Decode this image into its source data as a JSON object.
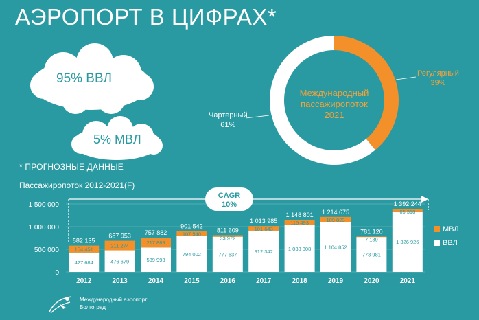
{
  "header": {
    "title": "АЭРОПОРТ В ЦИФРАХ*"
  },
  "clouds": [
    {
      "label": "95% ВВЛ"
    },
    {
      "label": "5% МВЛ"
    }
  ],
  "note": "* ПРОГНОЗНЫЕ ДАННЫЕ",
  "donut": {
    "center_line1": "Международный",
    "center_line2": "пассажиропоток",
    "center_line3": "2021",
    "regular_label": "Регулярный",
    "regular_pct": "39%",
    "charter_label": "Чартерный",
    "charter_pct": "61%"
  },
  "colors": {
    "background": "#2a9aa2",
    "orange": "#f3902a",
    "white": "#ffffff",
    "center_text": "#f3a23c"
  },
  "chart_title": "Пассажиропоток 2012-2021(F)",
  "cagr": {
    "label": "CAGR",
    "value": "10%"
  },
  "logo": {
    "line1": "Международный аэропорт",
    "line2": "Волгоград"
  },
  "chart_data": [
    {
      "type": "pie",
      "title": "Международный пассажиропоток 2021",
      "categories": [
        "Регулярный",
        "Чартерный"
      ],
      "values": [
        39,
        61
      ]
    },
    {
      "type": "bar",
      "stacked": true,
      "title": "Пассажиропоток 2012-2021(F)",
      "categories": [
        "2012",
        "2013",
        "2014",
        "2015",
        "2016",
        "2017",
        "2018",
        "2019",
        "2020",
        "2021"
      ],
      "series": [
        {
          "name": "ВВЛ",
          "values": [
            427684,
            476679,
            539993,
            794002,
            777637,
            912342,
            1033308,
            1104852,
            773981,
            1326926
          ],
          "labels": [
            "427 684",
            "476 679",
            "539 993",
            "794 002",
            "777 637",
            "912 342",
            "1 033 308",
            "1 104 852",
            "773 981",
            "1 326 926"
          ]
        },
        {
          "name": "МВЛ",
          "values": [
            154451,
            211274,
            217889,
            107540,
            33972,
            101643,
            115493,
            109823,
            7139,
            65318
          ],
          "labels": [
            "154 451",
            "211 274",
            "217 889",
            "107 540",
            "33 972",
            "101 643",
            "115 493",
            "109 823",
            "7 139",
            "65 318"
          ]
        }
      ],
      "totals": [
        582135,
        687953,
        757882,
        901542,
        811609,
        1013985,
        1148801,
        1214675,
        781120,
        1392244
      ],
      "total_labels": [
        "582 135",
        "687 953",
        "757 882",
        "901 542",
        "811 609",
        "1 013 985",
        "1 148 801",
        "1 214 675",
        "781 120",
        "1 392 244"
      ],
      "ytick_labels": [
        "0",
        "500 000",
        "1 000 000",
        "1 500 000"
      ],
      "yticks": [
        0,
        500000,
        1000000,
        1500000
      ],
      "ylim": [
        0,
        1500000
      ],
      "legend": [
        "МВЛ",
        "ВВЛ"
      ],
      "legend_position": "right"
    }
  ]
}
